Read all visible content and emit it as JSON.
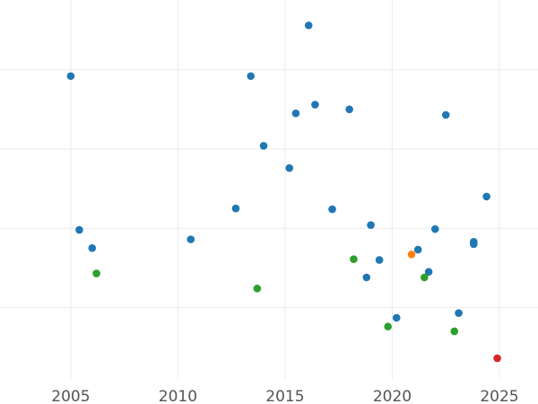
{
  "chart_data": {
    "type": "scatter",
    "title": "",
    "xlabel": "",
    "ylabel": "",
    "grid": true,
    "legend": "none",
    "xlim": [
      2001.7,
      2026.8
    ],
    "ylim": [
      -0.4,
      4.38
    ],
    "x_ticks": [
      2005,
      2010,
      2015,
      2020,
      2025
    ],
    "x_tick_labels": [
      "2005",
      "2010",
      "2015",
      "2020",
      "2025"
    ],
    "y_gridlines": [
      0.5,
      1.5,
      2.5,
      3.5,
      4.5
    ],
    "colors": {
      "blue": "#1f77b4",
      "green": "#2ca02c",
      "orange": "#ff7f0e",
      "red": "#d62728"
    },
    "points": [
      {
        "x": 2005.0,
        "y": 3.42,
        "color": "blue"
      },
      {
        "x": 2005.4,
        "y": 1.48,
        "color": "blue"
      },
      {
        "x": 2006.0,
        "y": 1.25,
        "color": "blue"
      },
      {
        "x": 2010.6,
        "y": 1.36,
        "color": "blue"
      },
      {
        "x": 2012.7,
        "y": 1.75,
        "color": "blue"
      },
      {
        "x": 2013.4,
        "y": 3.42,
        "color": "blue"
      },
      {
        "x": 2014.0,
        "y": 2.54,
        "color": "blue"
      },
      {
        "x": 2015.2,
        "y": 2.26,
        "color": "blue"
      },
      {
        "x": 2015.5,
        "y": 2.95,
        "color": "blue"
      },
      {
        "x": 2016.1,
        "y": 4.06,
        "color": "blue"
      },
      {
        "x": 2016.4,
        "y": 3.06,
        "color": "blue"
      },
      {
        "x": 2017.2,
        "y": 1.74,
        "color": "blue"
      },
      {
        "x": 2018.0,
        "y": 3.0,
        "color": "blue"
      },
      {
        "x": 2018.8,
        "y": 0.88,
        "color": "blue"
      },
      {
        "x": 2019.0,
        "y": 1.54,
        "color": "blue"
      },
      {
        "x": 2019.4,
        "y": 1.1,
        "color": "blue"
      },
      {
        "x": 2020.2,
        "y": 0.37,
        "color": "blue"
      },
      {
        "x": 2021.2,
        "y": 1.23,
        "color": "blue"
      },
      {
        "x": 2021.7,
        "y": 0.95,
        "color": "blue"
      },
      {
        "x": 2022.0,
        "y": 1.49,
        "color": "blue"
      },
      {
        "x": 2022.5,
        "y": 2.93,
        "color": "blue"
      },
      {
        "x": 2023.1,
        "y": 0.43,
        "color": "blue"
      },
      {
        "x": 2023.8,
        "y": 1.33,
        "color": "blue"
      },
      {
        "x": 2023.8,
        "y": 1.3,
        "color": "blue"
      },
      {
        "x": 2024.4,
        "y": 1.9,
        "color": "blue"
      },
      {
        "x": 2006.2,
        "y": 0.93,
        "color": "green"
      },
      {
        "x": 2013.7,
        "y": 0.74,
        "color": "green"
      },
      {
        "x": 2018.2,
        "y": 1.11,
        "color": "green"
      },
      {
        "x": 2019.8,
        "y": 0.26,
        "color": "green"
      },
      {
        "x": 2021.5,
        "y": 0.88,
        "color": "green"
      },
      {
        "x": 2022.9,
        "y": 0.2,
        "color": "green"
      },
      {
        "x": 2020.9,
        "y": 1.17,
        "color": "orange"
      },
      {
        "x": 2024.9,
        "y": -0.14,
        "color": "red"
      }
    ]
  }
}
